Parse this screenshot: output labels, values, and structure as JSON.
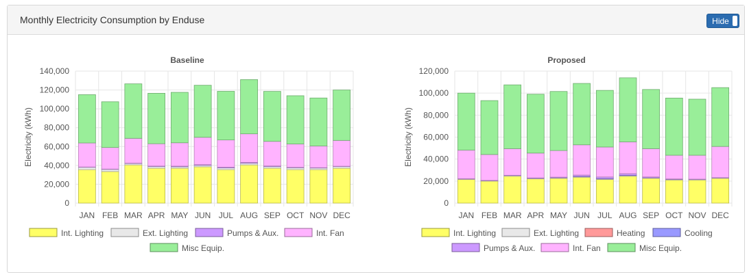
{
  "panel": {
    "title": "Monthly Electricity Consumption by Enduse",
    "hide_label": "Hide"
  },
  "chart_data": [
    {
      "type": "bar",
      "stacked": true,
      "title": "Baseline",
      "ylabel": "Electricity (kWh)",
      "ylim": [
        0,
        140000
      ],
      "yticks": [
        0,
        20000,
        40000,
        60000,
        80000,
        100000,
        120000,
        140000
      ],
      "ytick_labels": [
        "0",
        "20,000",
        "40,000",
        "60,000",
        "80,000",
        "100,000",
        "120,000",
        "140,000"
      ],
      "categories": [
        "JAN",
        "FEB",
        "MAR",
        "APR",
        "MAY",
        "JUN",
        "JUL",
        "AUG",
        "SEP",
        "OCT",
        "NOV",
        "DEC"
      ],
      "legend_position": "bottom",
      "series": [
        {
          "name": "Int. Lighting",
          "color": "#ffff66",
          "values": [
            35500,
            33500,
            40500,
            37000,
            37000,
            38500,
            35500,
            40500,
            37000,
            35500,
            35500,
            37000
          ]
        },
        {
          "name": "Ext. Lighting",
          "color": "#e8e8e8",
          "values": [
            2500,
            2300,
            1500,
            1800,
            1600,
            1600,
            1800,
            1800,
            1700,
            2000,
            1700,
            1800
          ]
        },
        {
          "name": "Pumps & Aux.",
          "color": "#cc99ff",
          "values": [
            300,
            300,
            400,
            500,
            600,
            700,
            800,
            900,
            700,
            500,
            400,
            300
          ]
        },
        {
          "name": "Int. Fan",
          "color": "#ffb3ff",
          "values": [
            25500,
            22900,
            26300,
            23700,
            24800,
            29000,
            28900,
            30300,
            26100,
            24700,
            23000,
            27400
          ]
        },
        {
          "name": "Misc Equip.",
          "color": "#99ee99",
          "values": [
            51200,
            48500,
            57800,
            53500,
            53500,
            55200,
            51600,
            57500,
            53000,
            51200,
            50900,
            53500
          ]
        }
      ]
    },
    {
      "type": "bar",
      "stacked": true,
      "title": "Proposed",
      "ylabel": "Electricity (kWh)",
      "ylim": [
        0,
        120000
      ],
      "yticks": [
        0,
        20000,
        40000,
        60000,
        80000,
        100000,
        120000
      ],
      "ytick_labels": [
        "0",
        "20,000",
        "40,000",
        "60,000",
        "80,000",
        "100,000",
        "120,000"
      ],
      "categories": [
        "JAN",
        "FEB",
        "MAR",
        "APR",
        "MAY",
        "JUN",
        "JUL",
        "AUG",
        "SEP",
        "OCT",
        "NOV",
        "DEC"
      ],
      "legend_position": "bottom",
      "series": [
        {
          "name": "Int. Lighting",
          "color": "#ffff66",
          "values": [
            21500,
            20000,
            24500,
            22000,
            22500,
            23500,
            21500,
            24500,
            22500,
            21000,
            21000,
            22500
          ]
        },
        {
          "name": "Ext. Lighting",
          "color": "#e8e8e8",
          "values": [
            500,
            500,
            500,
            500,
            500,
            500,
            500,
            500,
            500,
            500,
            500,
            500
          ]
        },
        {
          "name": "Heating",
          "color": "#ff9999",
          "values": [
            0,
            0,
            0,
            0,
            0,
            0,
            0,
            0,
            0,
            0,
            0,
            0
          ]
        },
        {
          "name": "Cooling",
          "color": "#9999ff",
          "values": [
            0,
            0,
            0,
            0,
            0,
            300,
            300,
            300,
            0,
            0,
            0,
            0
          ]
        },
        {
          "name": "Pumps & Aux.",
          "color": "#cc99ff",
          "values": [
            200,
            200,
            300,
            400,
            600,
            1200,
            1500,
            1500,
            800,
            500,
            300,
            200
          ]
        },
        {
          "name": "Int. Fan",
          "color": "#ffb3ff",
          "values": [
            26000,
            23500,
            24200,
            22600,
            24200,
            27500,
            27200,
            28900,
            25700,
            21500,
            21700,
            28300
          ]
        },
        {
          "name": "Misc Equip.",
          "color": "#99ee99",
          "values": [
            51800,
            49000,
            58000,
            53500,
            53700,
            55800,
            51500,
            58200,
            53800,
            52000,
            51000,
            53500
          ]
        }
      ]
    }
  ]
}
